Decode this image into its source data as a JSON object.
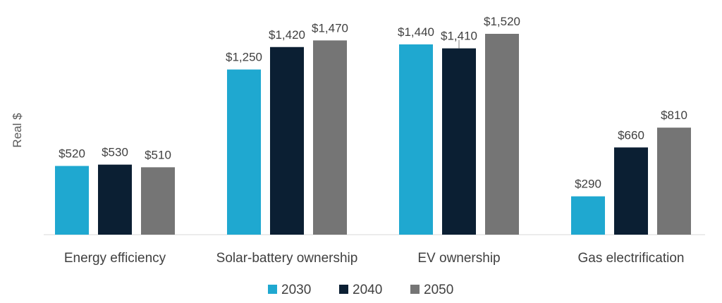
{
  "chart_data": {
    "type": "bar",
    "title": "",
    "xlabel": "",
    "ylabel": "Real $",
    "ylim": [
      0,
      1600
    ],
    "grid": false,
    "legend_position": "bottom",
    "categories": [
      "Energy efficiency",
      "Solar-battery ownership",
      "EV ownership",
      "Gas electrification"
    ],
    "series": [
      {
        "name": "2030",
        "color": "#1fa8d0",
        "values": [
          520,
          1250,
          1440,
          290
        ],
        "labels": [
          "$520",
          "$1,250",
          "$1,440",
          "$290"
        ]
      },
      {
        "name": "2040",
        "color": "#0b1f33",
        "values": [
          530,
          1420,
          1410,
          660
        ],
        "labels": [
          "$530",
          "$1,420",
          "$1,410",
          "$660"
        ]
      },
      {
        "name": "2050",
        "color": "#757575",
        "values": [
          510,
          1470,
          1520,
          810
        ],
        "labels": [
          "$510",
          "$1,470",
          "$1,520",
          "$810"
        ]
      }
    ]
  }
}
